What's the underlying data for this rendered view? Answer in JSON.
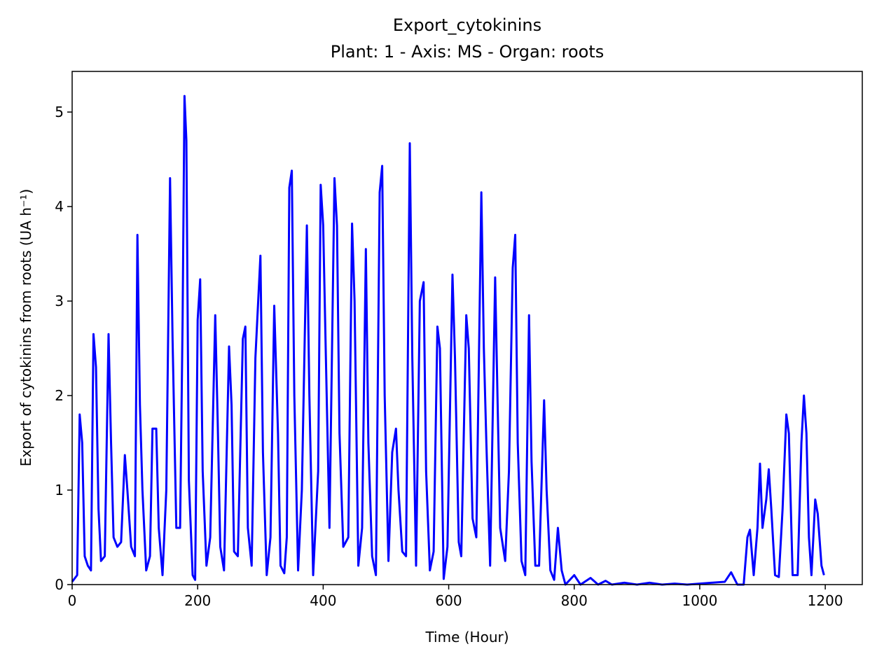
{
  "chart_data": {
    "type": "line",
    "title": "Export_cytokinins",
    "subtitle": "Plant: 1 - Axis: MS - Organ: roots",
    "x_label": "Time (Hour)",
    "y_label": "Export of cytokinins from roots (UA h⁻¹)",
    "xlim": [
      0,
      1259
    ],
    "ylim": [
      0,
      5.43
    ],
    "xticks": [
      0,
      200,
      400,
      600,
      800,
      1000,
      1200
    ],
    "yticks": [
      0,
      1,
      2,
      3,
      4,
      5
    ],
    "x": [
      0,
      8,
      12,
      16,
      20,
      25,
      30,
      34,
      38,
      42,
      46,
      52,
      58,
      62,
      66,
      72,
      78,
      84,
      88,
      94,
      100,
      104,
      108,
      112,
      118,
      124,
      128,
      134,
      138,
      144,
      150,
      156,
      160,
      166,
      172,
      176,
      179,
      182,
      186,
      192,
      196,
      200,
      204,
      208,
      214,
      220,
      228,
      232,
      236,
      242,
      250,
      254,
      258,
      264,
      272,
      276,
      280,
      286,
      292,
      300,
      304,
      310,
      316,
      322,
      328,
      332,
      338,
      342,
      346,
      350,
      354,
      360,
      366,
      374,
      378,
      384,
      392,
      396,
      400,
      404,
      410,
      418,
      422,
      426,
      432,
      440,
      446,
      450,
      456,
      462,
      468,
      472,
      478,
      484,
      490,
      494,
      498,
      504,
      510,
      516,
      520,
      526,
      532,
      538,
      542,
      548,
      554,
      560,
      564,
      570,
      576,
      582,
      586,
      592,
      598,
      606,
      610,
      616,
      620,
      628,
      632,
      638,
      644,
      652,
      656,
      660,
      666,
      674,
      678,
      682,
      690,
      696,
      702,
      706,
      710,
      716,
      722,
      728,
      732,
      738,
      744,
      752,
      756,
      762,
      768,
      774,
      780,
      786,
      800,
      810,
      826,
      838,
      850,
      860,
      880,
      900,
      920,
      940,
      960,
      980,
      1040,
      1050,
      1060,
      1070,
      1076,
      1080,
      1086,
      1092,
      1096,
      1100,
      1106,
      1110,
      1114,
      1120,
      1126,
      1132,
      1138,
      1142,
      1148,
      1156,
      1162,
      1166,
      1170,
      1174,
      1178,
      1184,
      1188,
      1194,
      1198
    ],
    "series": [
      {
        "name": "Export_cytokinins",
        "color": "#0000ff",
        "values": [
          0.03,
          0.1,
          1.8,
          1.5,
          0.3,
          0.2,
          0.15,
          2.65,
          2.3,
          0.8,
          0.25,
          0.3,
          2.65,
          1.5,
          0.5,
          0.4,
          0.45,
          1.37,
          1.0,
          0.4,
          0.3,
          3.7,
          1.9,
          1.0,
          0.15,
          0.3,
          1.65,
          1.65,
          0.6,
          0.1,
          1.0,
          4.3,
          2.6,
          0.6,
          0.6,
          2.8,
          5.17,
          4.7,
          1.1,
          0.1,
          0.05,
          2.8,
          3.23,
          1.2,
          0.2,
          0.5,
          2.85,
          1.7,
          0.4,
          0.15,
          2.52,
          1.9,
          0.35,
          0.3,
          2.6,
          2.73,
          0.6,
          0.2,
          2.4,
          3.48,
          1.4,
          0.1,
          0.5,
          2.95,
          1.6,
          0.2,
          0.12,
          0.5,
          4.2,
          4.38,
          2.0,
          0.15,
          1.0,
          3.8,
          2.0,
          0.1,
          1.2,
          4.23,
          3.8,
          2.5,
          0.6,
          4.3,
          3.8,
          1.6,
          0.4,
          0.5,
          3.82,
          3.0,
          0.2,
          0.6,
          3.55,
          1.5,
          0.3,
          0.1,
          4.15,
          4.43,
          2.0,
          0.25,
          1.4,
          1.65,
          1.0,
          0.35,
          0.3,
          4.67,
          2.4,
          0.2,
          3.0,
          3.2,
          1.2,
          0.15,
          0.35,
          2.73,
          2.5,
          0.06,
          0.4,
          3.28,
          2.4,
          0.45,
          0.3,
          2.85,
          2.5,
          0.7,
          0.5,
          4.15,
          2.5,
          1.5,
          0.2,
          3.25,
          1.9,
          0.6,
          0.25,
          1.2,
          3.35,
          3.7,
          1.5,
          0.25,
          0.1,
          2.85,
          1.3,
          0.2,
          0.2,
          1.95,
          1.0,
          0.15,
          0.05,
          0.6,
          0.15,
          0.0,
          0.1,
          0.0,
          0.07,
          0.0,
          0.04,
          0.0,
          0.02,
          0.0,
          0.02,
          0.0,
          0.01,
          0.0,
          0.03,
          0.13,
          0.0,
          0.0,
          0.5,
          0.58,
          0.1,
          0.6,
          1.28,
          0.6,
          0.9,
          1.22,
          0.8,
          0.1,
          0.08,
          0.8,
          1.8,
          1.6,
          0.1,
          0.1,
          1.5,
          2.0,
          1.6,
          0.5,
          0.1,
          0.9,
          0.75,
          0.2,
          0.1
        ]
      }
    ]
  }
}
